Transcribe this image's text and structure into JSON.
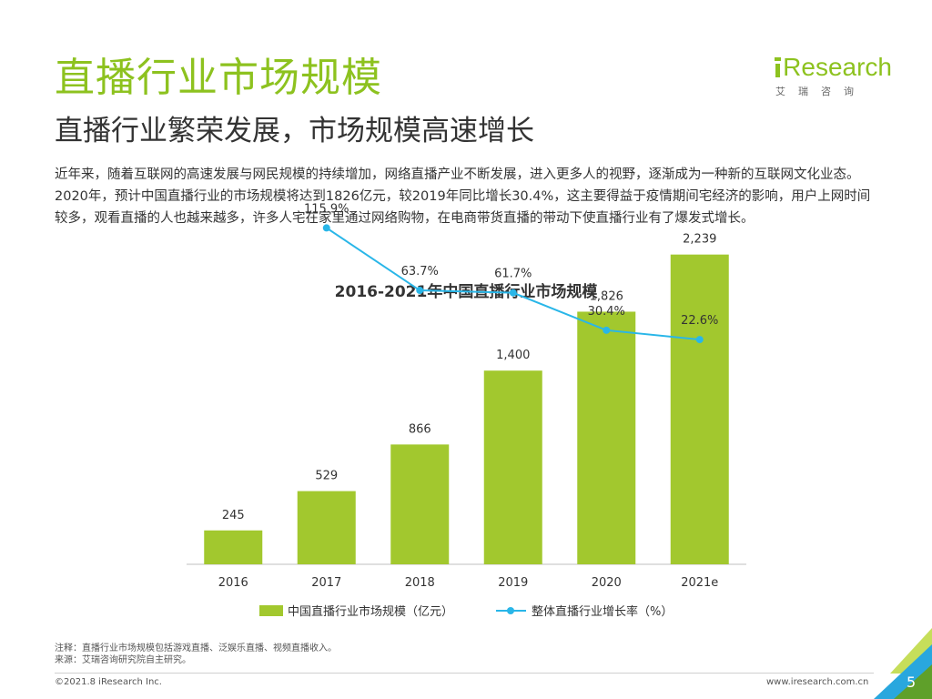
{
  "page": {
    "title": "直播行业市场规模",
    "subtitle": "直播行业繁荣发展，市场规模高速增长",
    "description": "近年来，随着互联网的高速发展与网民规模的持续增加，网络直播产业不断发展，进入更多人的视野，逐渐成为一种新的互联网文化业态。2020年，预计中国直播行业的市场规模将达到1826亿元，较2019年同比增长30.4%，这主要得益于疫情期间宅经济的影响，用户上网时间较多，观看直播的人也越来越多，许多人宅在家里通过网络购物，在电商带货直播的带动下使直播行业有了爆发式增长。"
  },
  "logo": {
    "brand": "Research",
    "sub": "艾瑞咨询"
  },
  "chart_data": {
    "type": "bar+line",
    "title": "2016-2021年中国直播行业市场规模",
    "categories": [
      "2016",
      "2017",
      "2018",
      "2019",
      "2020",
      "2021e"
    ],
    "series": [
      {
        "name": "中国直播行业市场规模（亿元）",
        "type": "bar",
        "values": [
          245,
          529,
          866,
          1400,
          1826,
          2239
        ],
        "labels": [
          "245",
          "529",
          "866",
          "1,400",
          "1,826",
          "2,239"
        ],
        "color": "#a2c82e"
      },
      {
        "name": "整体直播行业增长率（%）",
        "type": "line",
        "points": [
          {
            "category": "2017",
            "value": 115.9,
            "label": "115.9%"
          },
          {
            "category": "2018",
            "value": 63.7,
            "label": "63.7%"
          },
          {
            "category": "2019",
            "value": 61.7,
            "label": "61.7%"
          },
          {
            "category": "2020",
            "value": 30.4,
            "label": "30.4%"
          },
          {
            "category": "2021e",
            "value": 22.6,
            "label": "22.6%"
          }
        ],
        "color": "#29b6e8"
      }
    ],
    "bar_ylim": [
      0,
      2400
    ]
  },
  "footer": {
    "note_line1": "注释：直播行业市场规模包括游戏直播、泛娱乐直播、视频直播收入。",
    "note_line2": "来源：艾瑞咨询研究院自主研究。",
    "copyright": "©2021.8 iResearch Inc.",
    "website": "www.iresearch.com.cn",
    "page_number": "5"
  },
  "colors": {
    "accent": "#8dc21f",
    "bar": "#a2c82e",
    "line": "#29b6e8",
    "corner_dark": "#5fa02a",
    "corner_light": "#c6de5a",
    "corner_blue": "#29a7de"
  }
}
